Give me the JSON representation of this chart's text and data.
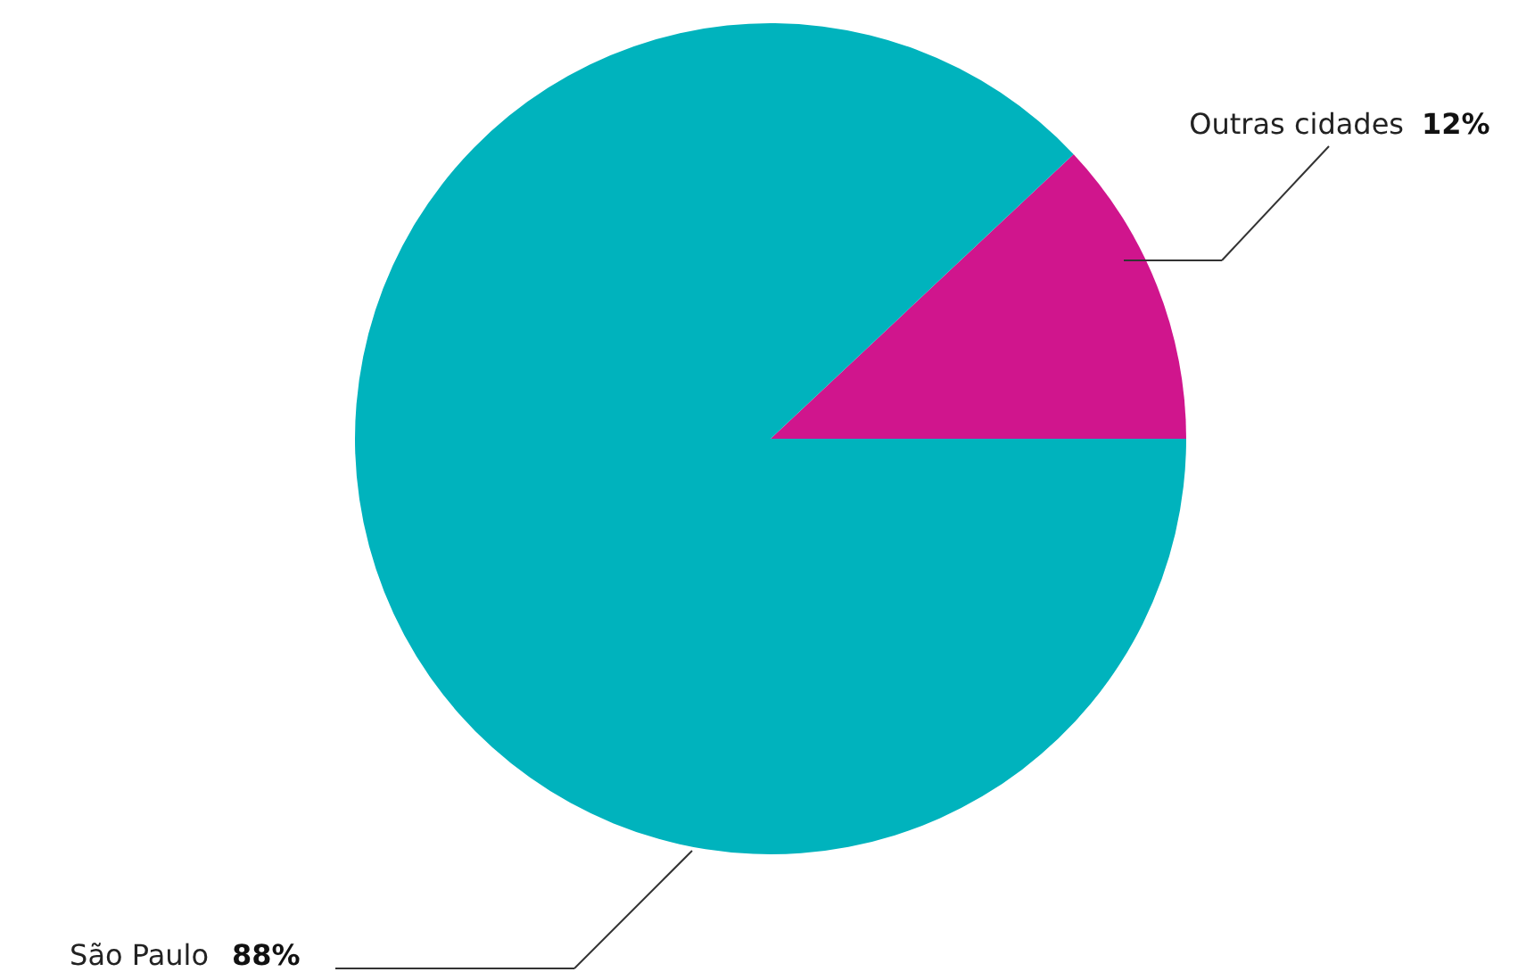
{
  "chart_data": {
    "type": "pie",
    "categories": [
      "Outras cidades",
      "São Paulo"
    ],
    "values": [
      12,
      88
    ],
    "colors": [
      "#d0158d",
      "#00b3bd"
    ],
    "value_labels": [
      "12%",
      "88%"
    ]
  }
}
